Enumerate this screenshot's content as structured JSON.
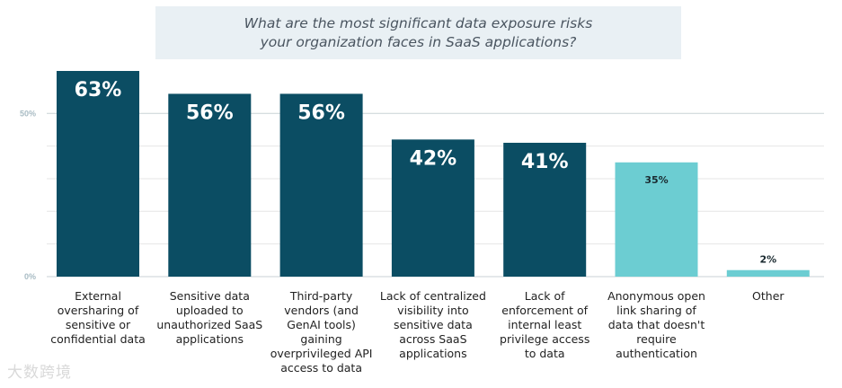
{
  "title": {
    "line1": "What are the most significant data exposure risks",
    "line2": "your organization faces in SaaS applications?"
  },
  "watermark": "大数跨境",
  "colors": {
    "dark": "#0b4d63",
    "light": "#6ccdd2",
    "grid": "#e6e6e6",
    "axis": "#c9d2d6",
    "ytick": "#a9bcc4"
  },
  "chart_data": {
    "type": "bar",
    "title": "What are the most significant data exposure risks your organization faces in SaaS applications?",
    "categories": [
      "External oversharing of sensitive or confidential data",
      "Sensitive data uploaded to unauthorized SaaS applications",
      "Third-party vendors (and GenAI tools) gaining overprivileged API access to data",
      "Lack of centralized visibility into sensitive data across SaaS applications",
      "Lack of enforcement of internal least privilege access to data",
      "Anonymous open link sharing of data that doesn't require authentication",
      "Other"
    ],
    "category_lines": [
      [
        "External",
        "oversharing of",
        "sensitive or",
        "confidential data"
      ],
      [
        "Sensitive data",
        "uploaded to",
        "unauthorized SaaS",
        "applications"
      ],
      [
        "Third-party",
        "vendors (and",
        "GenAI tools)",
        "gaining",
        "overprivileged API",
        "access to data"
      ],
      [
        "Lack of centralized",
        "visibility into",
        "sensitive data",
        "across SaaS",
        "applications"
      ],
      [
        "Lack of",
        "enforcement of",
        "internal least",
        "privilege access",
        "to data"
      ],
      [
        "Anonymous open",
        "link sharing of",
        "data that doesn't",
        "require",
        "authentication"
      ],
      [
        "Other"
      ]
    ],
    "values": [
      63,
      56,
      56,
      42,
      41,
      35,
      2
    ],
    "labels": [
      "63%",
      "56%",
      "56%",
      "42%",
      "41%",
      "35%",
      "2%"
    ],
    "highlight": [
      true,
      true,
      true,
      true,
      true,
      false,
      false
    ],
    "yticks": [
      {
        "value": 0,
        "label": "0%"
      },
      {
        "value": 50,
        "label": "50%"
      }
    ],
    "ylim": [
      0,
      63
    ],
    "grid": true
  }
}
